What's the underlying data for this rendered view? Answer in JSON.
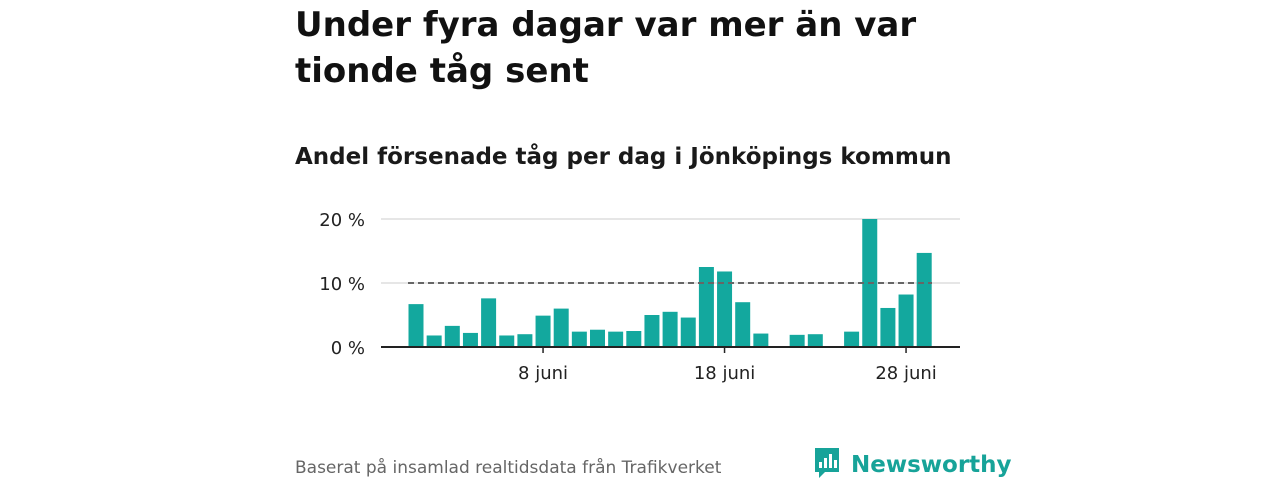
{
  "header": {
    "title": "Under fyra dagar var mer än var tionde tåg sent",
    "subtitle": "Andel försenade tåg per dag i Jönköpings kommun"
  },
  "footer": {
    "source": "Baserat på insamlad realtidsdata från Trafikverket",
    "brand": "Newsworthy",
    "brand_icon": "newsworthy-logo-icon"
  },
  "colors": {
    "bar": "#13a89e",
    "reference_line": "#666666",
    "grid": "#dddddd",
    "axis": "#222222",
    "brand": "#17a399"
  },
  "chart_data": {
    "type": "bar",
    "x_unit": "day of June",
    "x": [
      1,
      2,
      3,
      4,
      5,
      6,
      7,
      8,
      9,
      10,
      11,
      12,
      13,
      14,
      15,
      16,
      17,
      18,
      19,
      20,
      21,
      22,
      23,
      24,
      25,
      26,
      27,
      28,
      29,
      30
    ],
    "values": [
      6.7,
      1.8,
      3.3,
      2.2,
      7.6,
      1.8,
      2.0,
      4.9,
      6.0,
      2.4,
      2.7,
      2.4,
      2.5,
      5.0,
      5.5,
      4.6,
      12.5,
      11.8,
      7.0,
      2.1,
      null,
      1.9,
      2.0,
      null,
      2.4,
      20.0,
      6.1,
      8.2,
      14.7,
      null
    ],
    "reference_line": 10,
    "ylim": [
      0,
      20
    ],
    "yticks": [
      {
        "value": 0,
        "label": "0 %"
      },
      {
        "value": 10,
        "label": "10 %"
      },
      {
        "value": 20,
        "label": "20 %"
      }
    ],
    "xticks": [
      {
        "value": 8,
        "label": "8 juni"
      },
      {
        "value": 18,
        "label": "18 juni"
      },
      {
        "value": 28,
        "label": "28 juni"
      }
    ],
    "grid": true,
    "legend": false
  }
}
